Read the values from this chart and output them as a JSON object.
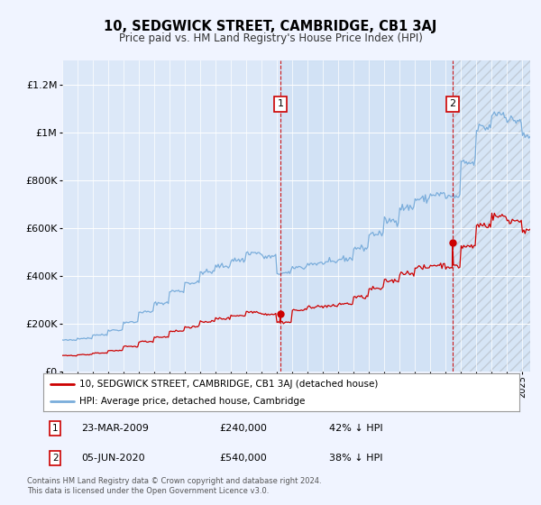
{
  "title": "10, SEDGWICK STREET, CAMBRIDGE, CB1 3AJ",
  "subtitle": "Price paid vs. HM Land Registry's House Price Index (HPI)",
  "background_color": "#f0f4ff",
  "plot_bg_color": "#dce8f8",
  "legend_label_red": "10, SEDGWICK STREET, CAMBRIDGE, CB1 3AJ (detached house)",
  "legend_label_blue": "HPI: Average price, detached house, Cambridge",
  "annotation1_date": "23-MAR-2009",
  "annotation1_price": "£240,000",
  "annotation1_pct": "42% ↓ HPI",
  "annotation2_date": "05-JUN-2020",
  "annotation2_price": "£540,000",
  "annotation2_pct": "38% ↓ HPI",
  "footer": "Contains HM Land Registry data © Crown copyright and database right 2024.\nThis data is licensed under the Open Government Licence v3.0.",
  "xmin": 1995.0,
  "xmax": 2025.5,
  "ymin": 0,
  "ymax": 1300000,
  "yticks": [
    0,
    200000,
    400000,
    600000,
    800000,
    1000000,
    1200000
  ],
  "ytick_labels": [
    "£0",
    "£200K",
    "£400K",
    "£600K",
    "£800K",
    "£1M",
    "£1.2M"
  ],
  "vline1_x": 2009.22,
  "vline2_x": 2020.43,
  "sale1_x": 2009.22,
  "sale1_y": 240000,
  "sale2_x": 2020.43,
  "sale2_y": 540000,
  "red_color": "#cc0000",
  "blue_color": "#7aaddb",
  "vline_color": "#cc0000"
}
